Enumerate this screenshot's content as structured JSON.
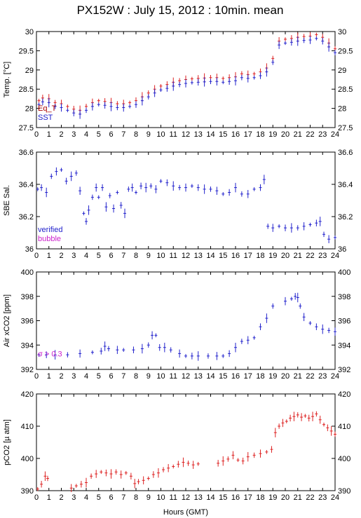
{
  "title": "PX152W : July 15, 2012 : 10min. mean",
  "xlabel": "Hours (GMT)",
  "colors": {
    "blue": "#2222cc",
    "red": "#dd2222",
    "magenta": "#cc22cc",
    "darkred": "#aa0000"
  },
  "chart_data": [
    {
      "type": "scatter",
      "ylabel": "Temp. [°C]",
      "xlim": [
        0,
        24
      ],
      "ylim": [
        27.5,
        30
      ],
      "yticks": [
        "27.5",
        "28",
        "28.5",
        "29",
        "29.5",
        "30"
      ],
      "legend": [
        "Eq_T",
        "SST"
      ],
      "series": [
        {
          "name": "Eq_T",
          "color": "#dd2222",
          "x": [
            0.2,
            0.5,
            1.0,
            1.5,
            2.0,
            2.5,
            3.0,
            3.5,
            4.0,
            4.5,
            5.0,
            5.5,
            6.0,
            6.5,
            7.0,
            7.5,
            8.0,
            8.5,
            9.0,
            9.5,
            10.0,
            10.5,
            11.0,
            11.5,
            12.0,
            12.5,
            13.0,
            13.5,
            14.0,
            14.5,
            15.0,
            15.5,
            16.0,
            16.5,
            17.0,
            17.5,
            18.0,
            18.5,
            19.0,
            19.5,
            20.0,
            20.5,
            21.0,
            21.5,
            22.0,
            22.5,
            23.0,
            23.5,
            24.0
          ],
          "y": [
            28.2,
            28.27,
            28.25,
            28.15,
            28.12,
            28.05,
            27.98,
            27.95,
            28.05,
            28.15,
            28.2,
            28.18,
            28.15,
            28.12,
            28.12,
            28.15,
            28.2,
            28.3,
            28.4,
            28.5,
            28.58,
            28.62,
            28.68,
            28.72,
            28.75,
            28.77,
            28.78,
            28.79,
            28.8,
            28.8,
            28.78,
            28.8,
            28.82,
            28.9,
            28.88,
            28.9,
            28.95,
            29.05,
            29.3,
            29.75,
            29.8,
            29.82,
            29.85,
            29.87,
            29.88,
            29.92,
            29.85,
            29.7,
            29.55
          ]
        },
        {
          "name": "SST",
          "color": "#2222cc",
          "x": [
            0.2,
            0.5,
            1.0,
            1.5,
            2.0,
            2.5,
            3.0,
            3.5,
            4.0,
            4.5,
            5.0,
            5.5,
            6.0,
            6.5,
            7.0,
            7.5,
            8.0,
            8.5,
            9.0,
            9.5,
            10.0,
            10.5,
            11.0,
            11.5,
            12.0,
            12.5,
            13.0,
            13.5,
            14.0,
            14.5,
            15.0,
            15.5,
            16.0,
            16.5,
            17.0,
            17.5,
            18.0,
            18.5,
            19.0,
            19.5,
            20.0,
            20.5,
            21.0,
            21.5,
            22.0,
            22.5,
            23.0,
            23.5,
            24.0
          ],
          "y": [
            28.1,
            28.17,
            28.15,
            28.05,
            28.02,
            27.95,
            27.88,
            27.85,
            27.95,
            28.05,
            28.1,
            28.08,
            28.05,
            28.02,
            28.02,
            28.05,
            28.1,
            28.2,
            28.3,
            28.4,
            28.48,
            28.52,
            28.58,
            28.62,
            28.65,
            28.67,
            28.68,
            28.69,
            28.7,
            28.7,
            28.68,
            28.7,
            28.72,
            28.8,
            28.78,
            28.8,
            28.85,
            28.95,
            29.2,
            29.65,
            29.7,
            29.72,
            29.75,
            29.77,
            29.78,
            29.82,
            29.75,
            29.6,
            29.45
          ]
        }
      ]
    },
    {
      "type": "scatter",
      "ylabel": "SBE Sal.",
      "xlim": [
        0,
        24
      ],
      "ylim": [
        36,
        36.6
      ],
      "yticks": [
        "36",
        "36.2",
        "36.4",
        "36.6"
      ],
      "legend": [
        "verified",
        "bubble"
      ],
      "series": [
        {
          "name": "verified",
          "color": "#2222cc",
          "x": [
            0.1,
            0.4,
            0.8,
            1.2,
            1.6,
            2.0,
            2.4,
            2.8,
            3.2,
            3.5,
            3.8,
            4.0,
            4.2,
            4.5,
            4.8,
            5.0,
            5.3,
            5.6,
            5.9,
            6.2,
            6.5,
            6.8,
            7.1,
            7.4,
            7.7,
            8.0,
            8.4,
            8.8,
            9.2,
            9.6,
            10.0,
            10.5,
            11.0,
            11.5,
            12.0,
            12.5,
            13.0,
            13.5,
            14.0,
            14.5,
            15.0,
            15.5,
            16.0,
            16.5,
            17.0,
            17.5,
            18.0,
            18.3,
            18.6,
            19.0,
            19.5,
            20.0,
            20.5,
            21.0,
            21.5,
            22.0,
            22.5,
            22.8,
            23.1,
            23.5,
            24.0
          ],
          "y": [
            36.37,
            36.38,
            36.35,
            36.45,
            36.48,
            36.49,
            36.42,
            36.45,
            36.47,
            36.36,
            36.22,
            36.17,
            36.24,
            36.32,
            36.38,
            36.32,
            36.38,
            36.26,
            36.33,
            36.25,
            36.35,
            36.27,
            36.22,
            36.37,
            36.38,
            36.35,
            36.39,
            36.38,
            36.39,
            36.37,
            36.42,
            36.41,
            36.39,
            36.38,
            36.38,
            36.39,
            36.38,
            36.37,
            36.37,
            36.36,
            36.34,
            36.35,
            36.38,
            36.34,
            36.34,
            36.37,
            36.38,
            36.43,
            36.14,
            36.13,
            36.14,
            36.13,
            36.13,
            36.13,
            36.14,
            36.15,
            36.16,
            36.17,
            36.09,
            36.06,
            36.07
          ]
        }
      ]
    },
    {
      "type": "scatter",
      "ylabel": "Air xCO2 [ppm]",
      "xlim": [
        0,
        24
      ],
      "ylim": [
        392,
        400
      ],
      "yticks": [
        "392",
        "394",
        "396",
        "398",
        "400"
      ],
      "annotation": "σ > 0.3",
      "series": [
        {
          "name": "",
          "color": "#2222cc",
          "x": [
            0.2,
            0.8,
            1.5,
            2.5,
            3.5,
            4.5,
            5.2,
            5.5,
            5.8,
            6.5,
            7.0,
            7.8,
            8.5,
            9.0,
            9.3,
            9.6,
            9.9,
            10.3,
            10.8,
            11.5,
            12.0,
            12.5,
            13.0,
            13.8,
            14.5,
            15.0,
            15.5,
            16.0,
            16.5,
            17.0,
            17.5,
            18.0,
            18.5,
            19.0,
            20.0,
            20.5,
            20.8,
            21.0,
            21.2,
            21.5,
            22.0,
            22.5,
            23.0,
            23.5,
            24.0
          ],
          "y": [
            393.2,
            393.2,
            393.2,
            393.2,
            393.3,
            393.4,
            393.5,
            393.9,
            393.7,
            393.6,
            393.6,
            393.6,
            393.7,
            394.0,
            394.8,
            394.8,
            393.8,
            393.8,
            393.6,
            393.3,
            393.1,
            393.1,
            393.1,
            393.1,
            393.1,
            393.1,
            393.3,
            393.8,
            394.3,
            394.4,
            394.6,
            395.5,
            396.2,
            397.2,
            397.6,
            397.8,
            398.0,
            397.9,
            397.2,
            396.3,
            395.8,
            395.5,
            395.3,
            395.2,
            395.1
          ]
        }
      ]
    },
    {
      "type": "scatter",
      "ylabel": "pCO2 [µ atm]",
      "xlim": [
        0,
        24
      ],
      "ylim": [
        390,
        420
      ],
      "yticks": [
        "390",
        "400",
        "410",
        "420"
      ],
      "series": [
        {
          "name": "",
          "color": "#dd2222",
          "x": [
            0.1,
            0.4,
            0.7,
            0.9,
            2.8,
            3.2,
            3.6,
            4.0,
            4.4,
            4.8,
            5.2,
            5.6,
            6.0,
            6.4,
            6.8,
            7.2,
            7.6,
            7.9,
            8.2,
            8.6,
            9.0,
            9.4,
            9.8,
            10.2,
            10.6,
            11.0,
            11.4,
            11.8,
            12.2,
            12.6,
            13.0,
            14.6,
            15.0,
            15.4,
            15.8,
            16.2,
            16.6,
            17.0,
            17.5,
            18.0,
            18.5,
            18.9,
            19.2,
            19.5,
            19.8,
            20.1,
            20.4,
            20.7,
            21.0,
            21.3,
            21.6,
            21.9,
            22.2,
            22.5,
            22.8,
            23.1,
            23.4,
            23.7,
            24.0
          ],
          "y": [
            390.5,
            392.0,
            394.5,
            393.8,
            390.8,
            391.5,
            392.0,
            392.5,
            394.5,
            395.2,
            395.8,
            395.5,
            395.2,
            395.8,
            395.0,
            395.5,
            394.5,
            392.2,
            392.8,
            393.2,
            393.8,
            395.0,
            395.5,
            396.5,
            397.0,
            397.5,
            398.2,
            398.8,
            398.5,
            398.0,
            398.3,
            398.5,
            399.2,
            399.8,
            401.0,
            399.5,
            399.2,
            400.5,
            401.0,
            401.5,
            402.0,
            402.8,
            408.0,
            410.0,
            411.0,
            411.5,
            412.5,
            413.0,
            413.5,
            412.8,
            413.2,
            412.5,
            413.0,
            413.8,
            412.0,
            410.5,
            409.5,
            408.5,
            407.5
          ]
        }
      ]
    }
  ]
}
